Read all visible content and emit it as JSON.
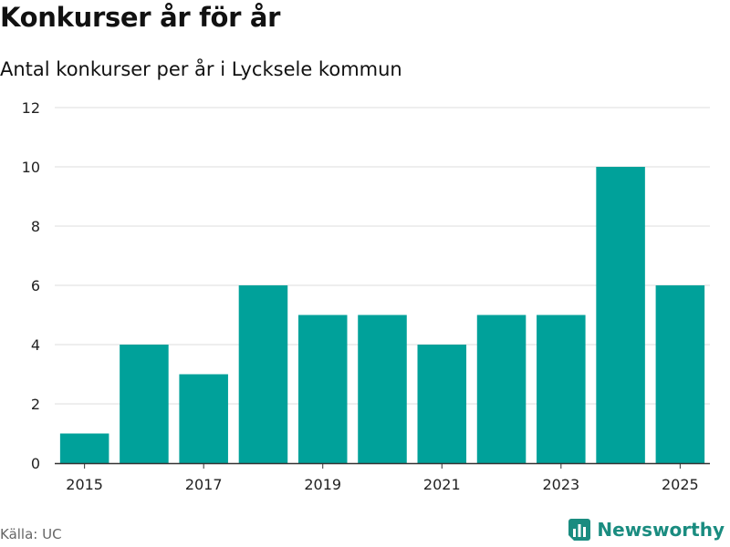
{
  "header": {
    "title": "Konkurser år för år",
    "subtitle": "Antal konkurser per år i Lycksele kommun"
  },
  "footer": {
    "source": "Källa: UC",
    "brand": "Newsworthy"
  },
  "colors": {
    "bar": "#00a19a",
    "grid": "#dddddd",
    "axis": "#333333",
    "brand": "#1a8c80"
  },
  "chart_data": {
    "type": "bar",
    "title": "Konkurser år för år",
    "subtitle": "Antal konkurser per år i Lycksele kommun",
    "xlabel": "",
    "ylabel": "",
    "categories": [
      "2015",
      "2016",
      "2017",
      "2018",
      "2019",
      "2020",
      "2021",
      "2022",
      "2023",
      "2024",
      "2025"
    ],
    "values": [
      1,
      4,
      3,
      6,
      5,
      5,
      4,
      5,
      5,
      10,
      6
    ],
    "x_tick_labels": [
      "2015",
      "2017",
      "2019",
      "2021",
      "2023",
      "2025"
    ],
    "y_ticks": [
      0,
      2,
      4,
      6,
      8,
      10,
      12
    ],
    "ylim": [
      0,
      12
    ],
    "grid": true
  }
}
